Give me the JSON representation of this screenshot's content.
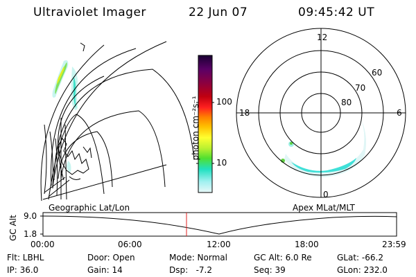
{
  "header": {
    "instrument": "Ultraviolet Imager",
    "date": "22 Jun 07",
    "time": "09:45:42 UT"
  },
  "geo_panel": {
    "label": "Geographic Lat/Lon"
  },
  "apex_panel": {
    "label": "Apex MLat/MLT",
    "mlt_labels": {
      "top": "12",
      "left": "18",
      "right": "6",
      "bottom": "0"
    },
    "lat_labels": [
      "60",
      "70",
      "80"
    ]
  },
  "colorbar": {
    "unit_label": "photon cm⁻²s⁻¹",
    "ticks": [
      "100",
      "10"
    ],
    "colors": [
      "#1a0033",
      "#5a0066",
      "#8b0040",
      "#c00010",
      "#ff2020",
      "#ff8000",
      "#ffc000",
      "#ffff30",
      "#b8f030",
      "#50e030",
      "#20e0c0",
      "#a0f0f0",
      "#e8f8f8"
    ]
  },
  "timeline": {
    "y_axis_label": "GC Alt",
    "y_ticks": [
      "9.0",
      "1.8"
    ],
    "x_ticks": [
      "00:00",
      "06:00",
      "12:00",
      "18:00",
      "23:59"
    ],
    "current_time_marker": "09:45"
  },
  "footer": {
    "filter": "Flt: LBHL",
    "ip": "IP: 36.0",
    "door": "Door: Open",
    "gain": "Gain: 14",
    "mode": "Mode: Normal",
    "dsp": "Dsp:   -7.2",
    "gc_alt": "GC Alt: 6.0 Re",
    "seq": "Seq: 39",
    "glat": "GLat: -66.2",
    "glon": "GLon: 232.0"
  }
}
